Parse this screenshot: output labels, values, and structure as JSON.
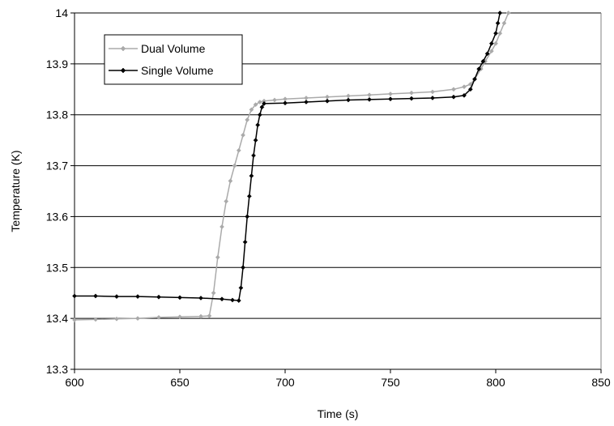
{
  "chart_data": {
    "type": "line",
    "title": "",
    "xlabel": "Time (s)",
    "ylabel": "Temperature (K)",
    "xlim": [
      600,
      850
    ],
    "ylim": [
      13.3,
      14.0
    ],
    "xticks": [
      "600",
      "650",
      "700",
      "750",
      "800",
      "850"
    ],
    "yticks": [
      "13.3",
      "13.4",
      "13.5",
      "13.6",
      "13.7",
      "13.8",
      "13.9",
      "14"
    ],
    "grid": "horizontal",
    "legend_position": "top-left",
    "series": [
      {
        "name": "Dual Volume",
        "color": "#aaaaaa",
        "marker": "diamond",
        "x": [
          600,
          610,
          620,
          630,
          640,
          650,
          660,
          664,
          666,
          668,
          670,
          672,
          674,
          676,
          678,
          680,
          682,
          684,
          686,
          688,
          690,
          695,
          700,
          710,
          720,
          730,
          740,
          750,
          760,
          770,
          780,
          785,
          788,
          790,
          793,
          795,
          798,
          800,
          802,
          804,
          806
        ],
        "y": [
          13.397,
          13.398,
          13.399,
          13.4,
          13.402,
          13.403,
          13.404,
          13.405,
          13.45,
          13.52,
          13.58,
          13.63,
          13.67,
          13.7,
          13.73,
          13.76,
          13.79,
          13.81,
          13.82,
          13.825,
          13.827,
          13.829,
          13.831,
          13.833,
          13.835,
          13.837,
          13.839,
          13.841,
          13.843,
          13.845,
          13.85,
          13.855,
          13.86,
          13.87,
          13.89,
          13.905,
          13.925,
          13.94,
          13.96,
          13.98,
          14.0
        ]
      },
      {
        "name": "Single Volume",
        "color": "#000000",
        "marker": "diamond",
        "x": [
          600,
          610,
          620,
          630,
          640,
          650,
          660,
          670,
          675,
          678,
          679,
          680,
          681,
          682,
          683,
          684,
          685,
          686,
          687,
          688,
          689,
          690,
          700,
          710,
          720,
          730,
          740,
          750,
          760,
          770,
          780,
          785,
          788,
          790,
          792,
          794,
          796,
          798,
          800,
          801,
          802
        ],
        "y": [
          13.444,
          13.444,
          13.443,
          13.443,
          13.442,
          13.441,
          13.44,
          13.438,
          13.436,
          13.435,
          13.46,
          13.5,
          13.55,
          13.6,
          13.64,
          13.68,
          13.72,
          13.75,
          13.78,
          13.8,
          13.815,
          13.822,
          13.823,
          13.825,
          13.827,
          13.829,
          13.83,
          13.831,
          13.832,
          13.833,
          13.835,
          13.838,
          13.85,
          13.87,
          13.89,
          13.905,
          13.92,
          13.94,
          13.96,
          13.98,
          14.0
        ]
      }
    ]
  }
}
